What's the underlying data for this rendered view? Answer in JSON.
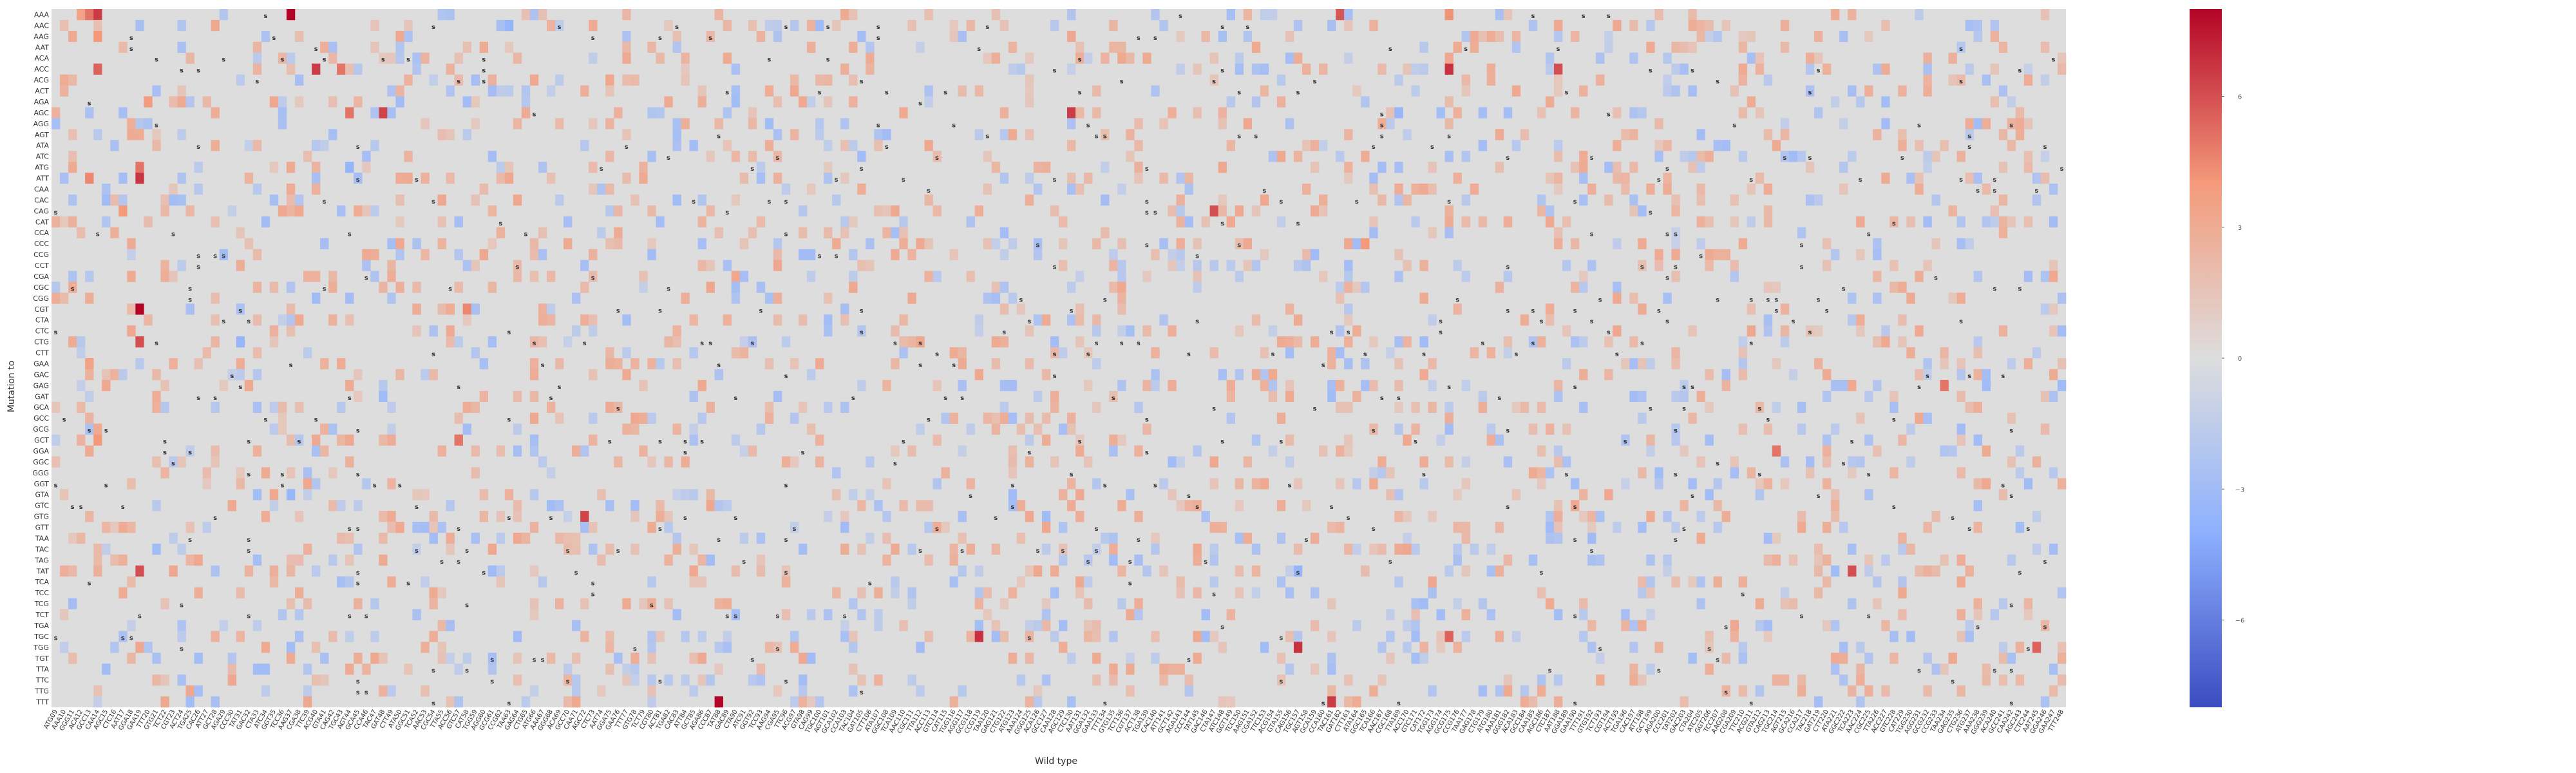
{
  "chart_data": {
    "type": "heatmap",
    "xlabel": "Wild type",
    "ylabel": "Mutation to",
    "rows": [
      "AAA",
      "AAC",
      "AAG",
      "AAT",
      "ACA",
      "ACC",
      "ACG",
      "ACT",
      "AGA",
      "AGC",
      "AGG",
      "AGT",
      "ATA",
      "ATC",
      "ATG",
      "ATT",
      "CAA",
      "CAC",
      "CAG",
      "CAT",
      "CCA",
      "CCC",
      "CCG",
      "CCT",
      "CGA",
      "CGC",
      "CGG",
      "CGT",
      "CTA",
      "CTC",
      "CTG",
      "CTT",
      "GAA",
      "GAC",
      "GAG",
      "GAT",
      "GCA",
      "GCC",
      "GCG",
      "GCT",
      "GGA",
      "GGC",
      "GGG",
      "GGT",
      "GTA",
      "GTC",
      "GTG",
      "GTT",
      "TAA",
      "TAC",
      "TAG",
      "TAT",
      "TCA",
      "TCC",
      "TCG",
      "TCT",
      "TGA",
      "TGC",
      "TGG",
      "TGT",
      "TTA",
      "TTC",
      "TTG",
      "TTT"
    ],
    "columns": [
      "ATG09",
      "AAA10",
      "GGG11",
      "ACA12",
      "GCC13",
      "CAA14",
      "AGC15",
      "CTC16",
      "AAT17",
      "GGA18",
      "GAA19",
      "TTT20",
      "GTG21",
      "TCT22",
      "CGT23",
      "ACT24",
      "TGA25",
      "CAC26",
      "ATT27",
      "GCT28",
      "AGA29",
      "CCC30",
      "TAT31",
      "GAC32",
      "CTA33",
      "ATC34",
      "GGT35",
      "TCC36",
      "AAG37",
      "CGA38",
      "TTC39",
      "ACG40",
      "GTA41",
      "CAG42",
      "TGC43",
      "AGT44",
      "GCA45",
      "CCA46",
      "TAC47",
      "GAT48",
      "CTT49",
      "ATA50",
      "GGC51",
      "TCA52",
      "AAC53",
      "CGC54",
      "TTA55",
      "ACC56",
      "GTC57",
      "CAT58",
      "TGG59",
      "AGG60",
      "GCG61",
      "CCG62",
      "TAA63",
      "GAG64",
      "CTG65",
      "ATG66",
      "AAA67",
      "GGG68",
      "ACA69",
      "GCC70",
      "CAA71",
      "AGC72",
      "CTC73",
      "AAT74",
      "GGA75",
      "GAA76",
      "TTT77",
      "GTG78",
      "TCT79",
      "CGT80",
      "ACT81",
      "TGA82",
      "CAC83",
      "ATT84",
      "GCT85",
      "AGA86",
      "CCC87",
      "TAT88",
      "GAC89",
      "CTA90",
      "ATC91",
      "GGT92",
      "TCC93",
      "AAG94",
      "CGA95",
      "TTC96",
      "ACG97",
      "GTA98",
      "CAG99",
      "TGC100",
      "AGT101",
      "GCA102",
      "CCA103",
      "TAC104",
      "GAT105",
      "CTT106",
      "ATA107",
      "GGC108",
      "TCA109",
      "AAC110",
      "CGC111",
      "TTA112",
      "ACC113",
      "GTC114",
      "CAT115",
      "TGG116",
      "AGG117",
      "GCG118",
      "CCG119",
      "TAA120",
      "GAG121",
      "CTG122",
      "ATG123",
      "AAA124",
      "GGG125",
      "ACA126",
      "GCC127",
      "CAA128",
      "AGC129",
      "CTC130",
      "AAT131",
      "GGA132",
      "GAA133",
      "TTT134",
      "GTG135",
      "TCT136",
      "CGT137",
      "ACT138",
      "TGA139",
      "CAC140",
      "ATT141",
      "GCT142",
      "AGA143",
      "CCC144",
      "TAT145",
      "GAC146",
      "CTA147",
      "ATC148",
      "GGT149",
      "TCC150",
      "AAG151",
      "CGA152",
      "TTC153",
      "ACG154",
      "GTA155",
      "CAG156",
      "TGC157",
      "AGT158",
      "GCA159",
      "CCA160",
      "TAC161",
      "GAT162",
      "CTT163",
      "ATA164",
      "GGC165",
      "TCA166",
      "AAC167",
      "CGC168",
      "TTA169",
      "ACC170",
      "GTC171",
      "CAT172",
      "TGG173",
      "AGG174",
      "GCG175",
      "CCG176",
      "TAA177",
      "GAG178",
      "CTG179",
      "ATG180",
      "AAA181",
      "GGG182",
      "ACA183",
      "GCC184",
      "CAA185",
      "AGC186",
      "CTC187",
      "AAT188",
      "GGA189",
      "GAA190",
      "TTT191",
      "GTG192",
      "TCT193",
      "CGT194",
      "ACT195",
      "TGA196",
      "CAC197",
      "ATT198",
      "GCT199",
      "AGA200",
      "CCC201",
      "TAT202",
      "GAC203",
      "CTA204",
      "ATC205",
      "GGT206",
      "TCC207",
      "AAG208",
      "CGA209",
      "TTC210",
      "ACG211",
      "GTA212",
      "CAG213",
      "TGC214",
      "AGT215",
      "GCA216",
      "CCA217",
      "TAC218",
      "GAT219",
      "CTT220",
      "ATA221",
      "GGC222",
      "TCA223",
      "AAC224",
      "CGC225",
      "TTA226",
      "ACC227",
      "GTC228",
      "CAT229",
      "TGG230",
      "AGG231",
      "GCG232",
      "CCG233",
      "TAA234",
      "GAG235",
      "CTG236",
      "ATG237",
      "AAA238",
      "GGG239",
      "ACA240",
      "GCC241",
      "CAA242",
      "AGC243",
      "CTC244",
      "AAT245",
      "GGA246",
      "GAA247",
      "TTT248"
    ],
    "colorbar": {
      "ticks": [
        6,
        3,
        0,
        -3,
        -6
      ],
      "min": -8,
      "max": 8,
      "colormap": "coolwarm"
    },
    "cell_marker": "s",
    "strong_cells": [
      [
        0,
        5,
        6.5
      ],
      [
        0,
        4,
        5.0
      ],
      [
        0,
        3,
        3.5
      ],
      [
        0,
        28,
        8.0
      ],
      [
        0,
        153,
        5.8
      ],
      [
        0,
        166,
        4.2
      ],
      [
        2,
        5,
        4.0
      ],
      [
        5,
        5,
        5.5
      ],
      [
        5,
        31,
        6.5
      ],
      [
        5,
        34,
        5.0
      ],
      [
        5,
        166,
        6.8
      ],
      [
        5,
        179,
        6.0
      ],
      [
        9,
        39,
        6.3
      ],
      [
        9,
        121,
        6.5
      ],
      [
        9,
        35,
        5.0
      ],
      [
        14,
        10,
        5.0
      ],
      [
        15,
        10,
        6.7
      ],
      [
        15,
        4,
        4.5
      ],
      [
        18,
        138,
        6.0
      ],
      [
        18,
        8,
        4.0
      ],
      [
        27,
        10,
        9.5
      ],
      [
        27,
        49,
        4.5
      ],
      [
        30,
        10,
        6.0
      ],
      [
        32,
        4,
        3.5
      ],
      [
        39,
        5,
        4.0
      ],
      [
        39,
        48,
        5.0
      ],
      [
        46,
        63,
        6.3
      ],
      [
        51,
        10,
        6.0
      ],
      [
        51,
        214,
        6.0
      ],
      [
        57,
        110,
        6.8
      ],
      [
        57,
        166,
        5.5
      ],
      [
        58,
        148,
        6.8
      ],
      [
        58,
        236,
        5.5
      ],
      [
        63,
        79,
        8.5
      ],
      [
        63,
        152,
        6.5
      ],
      [
        21,
        156,
        4.0
      ],
      [
        40,
        205,
        5.0
      ],
      [
        34,
        225,
        5.0
      ],
      [
        8,
        11,
        3.8
      ]
    ],
    "negative_cells": [
      [
        1,
        54,
        -3.5
      ],
      [
        1,
        91,
        -3.0
      ],
      [
        14,
        35,
        -3.5
      ],
      [
        22,
        150,
        -3.0
      ],
      [
        30,
        22,
        -3.5
      ],
      [
        34,
        230,
        -3.0
      ],
      [
        44,
        28,
        -3.5
      ],
      [
        51,
        148,
        -3.5
      ],
      [
        51,
        52,
        -3.0
      ],
      [
        9,
        160,
        -3.5
      ],
      [
        59,
        201,
        -2.5
      ],
      [
        26,
        31,
        -3.0
      ],
      [
        11,
        33,
        -2.8
      ],
      [
        47,
        178,
        -3.0
      ]
    ]
  }
}
